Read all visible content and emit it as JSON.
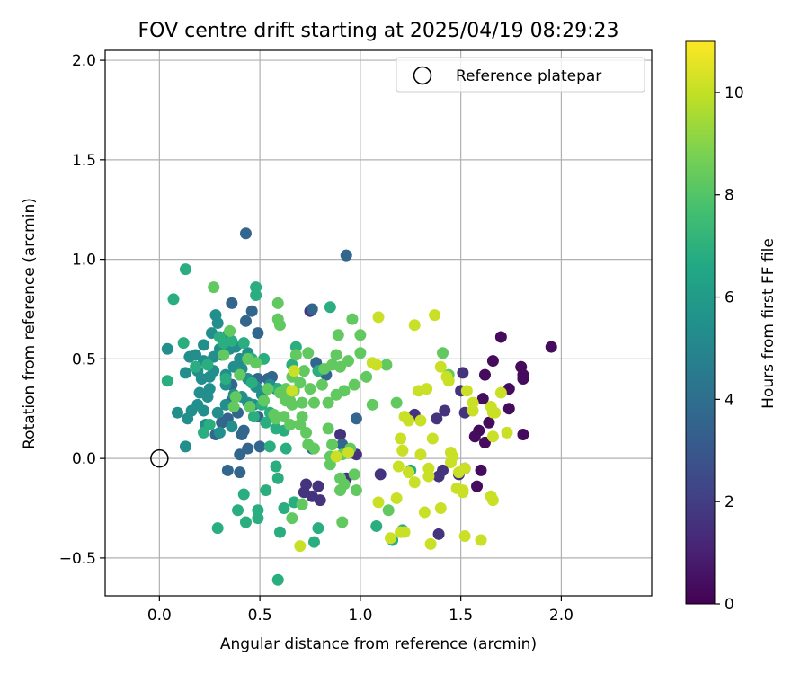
{
  "chart_data": {
    "type": "scatter",
    "title": "FOV centre drift starting at 2025/04/19 08:29:23",
    "xlabel": "Angular distance from reference (arcmin)",
    "ylabel": "Rotation from reference (arcmin)",
    "xlim": [
      -0.27,
      2.45
    ],
    "ylim": [
      -0.69,
      2.05
    ],
    "xticks": [
      0.0,
      0.5,
      1.0,
      1.5,
      2.0
    ],
    "xtick_labels": [
      "0.0",
      "0.5",
      "1.0",
      "1.5",
      "2.0"
    ],
    "yticks": [
      -0.5,
      0.0,
      0.5,
      1.0,
      1.5,
      2.0
    ],
    "ytick_labels": [
      "−0.5",
      "0.0",
      "0.5",
      "1.0",
      "1.5",
      "2.0"
    ],
    "grid": true,
    "legend": {
      "placement": "top-right",
      "entries": [
        "Reference platepar"
      ]
    },
    "reference_point": {
      "x": 0.0,
      "y": 0.0
    },
    "colorbar": {
      "label": "Hours from first FF file",
      "colormap": "viridis",
      "range": [
        0,
        11
      ],
      "ticks": [
        0,
        2,
        4,
        6,
        8,
        10
      ],
      "tick_labels": [
        "0",
        "2",
        "4",
        "6",
        "8",
        "10"
      ]
    },
    "series": [
      {
        "hours": 0.3,
        "points": [
          [
            1.95,
            0.56
          ],
          [
            1.7,
            0.61
          ],
          [
            1.8,
            0.46
          ],
          [
            1.81,
            0.42
          ],
          [
            1.81,
            0.4
          ],
          [
            1.66,
            0.49
          ],
          [
            1.62,
            0.42
          ],
          [
            1.74,
            0.35
          ],
          [
            1.81,
            0.12
          ],
          [
            1.61,
            0.3
          ],
          [
            1.59,
            0.14
          ],
          [
            1.62,
            0.08
          ],
          [
            1.74,
            0.25
          ],
          [
            1.64,
            0.18
          ],
          [
            1.57,
            0.11
          ],
          [
            1.52,
            -0.05
          ],
          [
            1.58,
            -0.14
          ],
          [
            1.6,
            -0.06
          ]
        ]
      },
      {
        "hours": 1.6,
        "points": [
          [
            1.51,
            0.43
          ],
          [
            1.5,
            0.34
          ],
          [
            1.52,
            0.23
          ],
          [
            1.38,
            0.2
          ],
          [
            1.42,
            0.24
          ],
          [
            1.27,
            0.22
          ],
          [
            1.41,
            -0.06
          ],
          [
            1.39,
            -0.09
          ],
          [
            1.49,
            -0.08
          ],
          [
            1.39,
            -0.38
          ],
          [
            1.1,
            -0.08
          ],
          [
            0.9,
            0.12
          ],
          [
            0.73,
            -0.13
          ],
          [
            0.79,
            -0.14
          ],
          [
            0.72,
            -0.17
          ],
          [
            0.8,
            -0.21
          ],
          [
            0.76,
            -0.19
          ],
          [
            0.75,
            0.74
          ],
          [
            0.93,
            -0.1
          ],
          [
            0.92,
            -0.12
          ],
          [
            0.98,
            0.02
          ]
        ]
      },
      {
        "hours": 3.6,
        "points": [
          [
            0.43,
            1.13
          ],
          [
            0.93,
            1.02
          ],
          [
            0.46,
            0.74
          ],
          [
            0.36,
            0.78
          ],
          [
            0.43,
            0.69
          ],
          [
            0.76,
            0.75
          ],
          [
            0.49,
            0.63
          ],
          [
            0.54,
            0.4
          ],
          [
            0.56,
            0.41
          ],
          [
            0.49,
            0.4
          ],
          [
            0.36,
            0.29
          ],
          [
            0.28,
            0.12
          ],
          [
            0.41,
            0.12
          ],
          [
            0.4,
            -0.07
          ],
          [
            0.34,
            -0.06
          ],
          [
            0.78,
            0.48
          ],
          [
            0.83,
            0.42
          ],
          [
            0.76,
            0.05
          ],
          [
            0.91,
            0.07
          ],
          [
            0.98,
            0.2
          ],
          [
            0.5,
            0.06
          ],
          [
            0.4,
            0.02
          ],
          [
            0.31,
            0.18
          ],
          [
            0.34,
            0.2
          ],
          [
            0.42,
            0.14
          ],
          [
            0.44,
            0.05
          ],
          [
            0.49,
            0.21
          ],
          [
            0.39,
            0.23
          ],
          [
            0.36,
            0.37
          ]
        ]
      },
      {
        "hours": 5.4,
        "points": [
          [
            0.04,
            0.55
          ],
          [
            0.13,
            0.43
          ],
          [
            0.19,
            0.44
          ],
          [
            0.25,
            0.41
          ],
          [
            0.3,
            0.55
          ],
          [
            0.34,
            0.62
          ],
          [
            0.28,
            0.72
          ],
          [
            0.29,
            0.68
          ],
          [
            0.26,
            0.63
          ],
          [
            0.22,
            0.57
          ],
          [
            0.27,
            0.51
          ],
          [
            0.31,
            0.52
          ],
          [
            0.35,
            0.55
          ],
          [
            0.38,
            0.56
          ],
          [
            0.4,
            0.5
          ],
          [
            0.44,
            0.53
          ],
          [
            0.41,
            0.45
          ],
          [
            0.37,
            0.46
          ],
          [
            0.33,
            0.37
          ],
          [
            0.24,
            0.31
          ],
          [
            0.22,
            0.24
          ],
          [
            0.29,
            0.23
          ],
          [
            0.33,
            0.27
          ],
          [
            0.37,
            0.32
          ],
          [
            0.41,
            0.31
          ],
          [
            0.44,
            0.28
          ],
          [
            0.47,
            0.27
          ],
          [
            0.51,
            0.32
          ],
          [
            0.55,
            0.37
          ],
          [
            0.58,
            0.35
          ],
          [
            0.09,
            0.23
          ],
          [
            0.16,
            0.24
          ],
          [
            0.2,
            0.33
          ],
          [
            0.25,
            0.35
          ],
          [
            0.18,
            0.52
          ],
          [
            0.15,
            0.51
          ],
          [
            0.14,
            0.2
          ],
          [
            0.23,
            0.17
          ],
          [
            0.3,
            0.13
          ],
          [
            0.36,
            0.16
          ],
          [
            0.13,
            0.06
          ],
          [
            0.44,
            0.4
          ],
          [
            0.48,
            0.36
          ],
          [
            0.33,
            0.42
          ],
          [
            0.27,
            0.44
          ],
          [
            0.21,
            0.4
          ],
          [
            0.22,
            0.49
          ],
          [
            0.19,
            0.27
          ]
        ]
      },
      {
        "hours": 6.9,
        "points": [
          [
            0.13,
            0.95
          ],
          [
            0.07,
            0.8
          ],
          [
            0.48,
            0.86
          ],
          [
            0.48,
            0.82
          ],
          [
            0.32,
            0.58
          ],
          [
            0.3,
            0.61
          ],
          [
            0.42,
            0.58
          ],
          [
            0.46,
            0.5
          ],
          [
            0.52,
            0.5
          ],
          [
            0.59,
            0.35
          ],
          [
            0.51,
            0.27
          ],
          [
            0.47,
            0.21
          ],
          [
            0.53,
            0.18
          ],
          [
            0.58,
            0.15
          ],
          [
            0.62,
            0.14
          ],
          [
            0.55,
            0.06
          ],
          [
            0.58,
            -0.04
          ],
          [
            0.63,
            0.05
          ],
          [
            0.85,
            0.76
          ],
          [
            0.79,
            0.44
          ],
          [
            0.68,
            0.56
          ],
          [
            0.66,
            0.47
          ],
          [
            0.25,
            0.17
          ],
          [
            0.22,
            0.13
          ],
          [
            0.12,
            0.58
          ],
          [
            0.24,
            0.47
          ],
          [
            0.42,
            -0.18
          ],
          [
            0.39,
            -0.26
          ],
          [
            0.43,
            -0.32
          ],
          [
            0.49,
            -0.26
          ],
          [
            0.49,
            -0.3
          ],
          [
            0.6,
            -0.37
          ],
          [
            0.53,
            -0.16
          ],
          [
            0.59,
            -0.1
          ],
          [
            0.62,
            -0.25
          ],
          [
            0.67,
            -0.22
          ],
          [
            0.77,
            -0.42
          ],
          [
            0.79,
            -0.35
          ],
          [
            1.08,
            -0.34
          ],
          [
            1.16,
            -0.41
          ],
          [
            1.21,
            -0.36
          ],
          [
            1.25,
            -0.06
          ],
          [
            0.29,
            -0.35
          ],
          [
            0.59,
            -0.61
          ],
          [
            0.36,
            0.59
          ],
          [
            0.33,
            0.4
          ],
          [
            0.46,
            0.38
          ],
          [
            0.55,
            0.23
          ],
          [
            0.18,
            0.46
          ],
          [
            0.04,
            0.39
          ]
        ]
      },
      {
        "hours": 8.3,
        "points": [
          [
            0.27,
            0.86
          ],
          [
            0.59,
            0.78
          ],
          [
            0.59,
            0.7
          ],
          [
            0.6,
            0.67
          ],
          [
            0.68,
            0.52
          ],
          [
            0.74,
            0.53
          ],
          [
            0.82,
            0.45
          ],
          [
            0.88,
            0.52
          ],
          [
            0.86,
            0.47
          ],
          [
            0.9,
            0.46
          ],
          [
            0.89,
            0.62
          ],
          [
            0.96,
            0.7
          ],
          [
            1.0,
            0.62
          ],
          [
            1.0,
            0.53
          ],
          [
            0.94,
            0.49
          ],
          [
            0.97,
            0.37
          ],
          [
            0.92,
            0.34
          ],
          [
            0.88,
            0.32
          ],
          [
            0.84,
            0.28
          ],
          [
            0.75,
            0.35
          ],
          [
            0.7,
            0.38
          ],
          [
            0.66,
            0.41
          ],
          [
            0.63,
            0.35
          ],
          [
            0.63,
            0.29
          ],
          [
            0.66,
            0.27
          ],
          [
            0.62,
            0.21
          ],
          [
            0.58,
            0.2
          ],
          [
            0.65,
            0.17
          ],
          [
            0.7,
            0.17
          ],
          [
            0.73,
            0.13
          ],
          [
            0.74,
            0.07
          ],
          [
            0.77,
            0.05
          ],
          [
            0.84,
            0.15
          ],
          [
            0.86,
            0.07
          ],
          [
            0.91,
            0.02
          ],
          [
            0.95,
            0.05
          ],
          [
            0.85,
            0.01
          ],
          [
            0.85,
            -0.03
          ],
          [
            0.9,
            -0.1
          ],
          [
            0.92,
            -0.13
          ],
          [
            0.97,
            -0.08
          ],
          [
            0.98,
            -0.16
          ],
          [
            0.9,
            -0.16
          ],
          [
            0.91,
            -0.32
          ],
          [
            0.71,
            -0.23
          ],
          [
            0.66,
            -0.3
          ],
          [
            1.14,
            -0.26
          ],
          [
            1.06,
            0.27
          ],
          [
            1.03,
            0.41
          ],
          [
            1.13,
            0.47
          ],
          [
            1.18,
            0.28
          ],
          [
            1.41,
            0.53
          ],
          [
            1.44,
            0.42
          ],
          [
            0.44,
            0.5
          ],
          [
            0.4,
            0.42
          ],
          [
            0.48,
            0.48
          ],
          [
            0.52,
            0.29
          ],
          [
            0.54,
            0.35
          ],
          [
            0.38,
            0.31
          ],
          [
            0.45,
            0.26
          ],
          [
            0.57,
            0.22
          ],
          [
            0.6,
            0.33
          ],
          [
            0.71,
            0.21
          ],
          [
            0.77,
            0.28
          ],
          [
            0.81,
            0.37
          ],
          [
            0.72,
            0.44
          ],
          [
            0.71,
            0.28
          ],
          [
            0.35,
            0.64
          ],
          [
            0.32,
            0.52
          ],
          [
            0.37,
            0.26
          ],
          [
            0.67,
            0.34
          ],
          [
            0.65,
            0.29
          ]
        ]
      },
      {
        "hours": 10.1,
        "points": [
          [
            1.37,
            0.72
          ],
          [
            1.27,
            0.67
          ],
          [
            1.09,
            0.71
          ],
          [
            1.06,
            0.48
          ],
          [
            1.08,
            0.47
          ],
          [
            1.29,
            0.34
          ],
          [
            1.33,
            0.35
          ],
          [
            1.4,
            0.46
          ],
          [
            1.43,
            0.41
          ],
          [
            1.44,
            0.39
          ],
          [
            1.53,
            0.34
          ],
          [
            1.56,
            0.28
          ],
          [
            1.56,
            0.24
          ],
          [
            1.65,
            0.26
          ],
          [
            1.66,
            0.23
          ],
          [
            1.7,
            0.33
          ],
          [
            1.67,
            0.23
          ],
          [
            1.73,
            0.13
          ],
          [
            1.66,
            0.11
          ],
          [
            1.65,
            -0.19
          ],
          [
            1.66,
            -0.21
          ],
          [
            1.6,
            -0.41
          ],
          [
            1.52,
            -0.39
          ],
          [
            1.51,
            -0.16
          ],
          [
            1.51,
            -0.17
          ],
          [
            1.48,
            -0.15
          ],
          [
            1.52,
            -0.05
          ],
          [
            1.49,
            -0.07
          ],
          [
            1.45,
            -0.02
          ],
          [
            1.45,
            0.03
          ],
          [
            1.46,
            0.01
          ],
          [
            1.36,
            0.1
          ],
          [
            1.3,
            0.02
          ],
          [
            1.34,
            -0.05
          ],
          [
            1.34,
            -0.09
          ],
          [
            1.27,
            -0.12
          ],
          [
            1.24,
            -0.07
          ],
          [
            1.21,
            0.04
          ],
          [
            1.2,
            0.1
          ],
          [
            1.24,
            0.19
          ],
          [
            1.22,
            0.21
          ],
          [
            1.3,
            0.19
          ],
          [
            1.19,
            -0.04
          ],
          [
            1.18,
            -0.2
          ],
          [
            1.09,
            -0.22
          ],
          [
            1.15,
            -0.4
          ],
          [
            1.2,
            -0.37
          ],
          [
            1.22,
            -0.37
          ],
          [
            1.35,
            -0.43
          ],
          [
            1.4,
            -0.25
          ],
          [
            1.32,
            -0.27
          ],
          [
            0.7,
            -0.44
          ],
          [
            0.66,
            0.34
          ],
          [
            0.67,
            0.44
          ],
          [
            0.94,
            0.03
          ],
          [
            0.88,
            0.01
          ],
          [
            1.21,
            0.04
          ]
        ]
      }
    ]
  }
}
